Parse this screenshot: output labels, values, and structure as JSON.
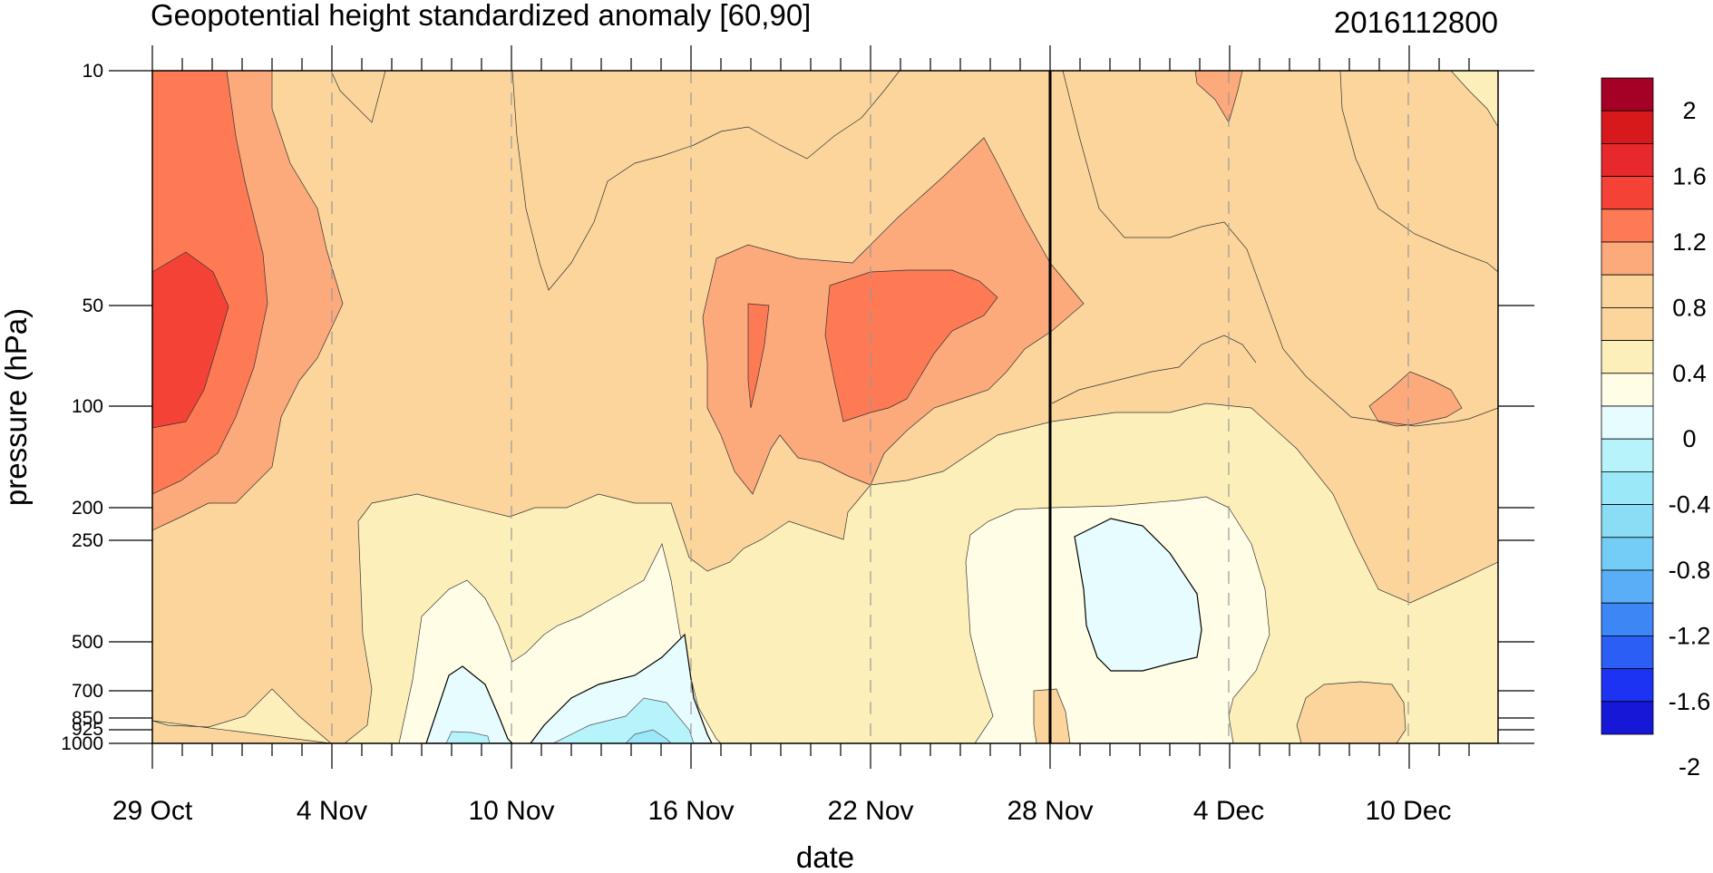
{
  "chart_data": {
    "type": "heatmap",
    "subtype": "filled-contour",
    "title": "Geopotential height standardized anomaly [60,90]",
    "run_label": "2016112800",
    "xlabel": "date",
    "ylabel": "pressure (hPa)",
    "x_ticks": [
      "29 Oct",
      "4 Nov",
      "10 Nov",
      "16 Nov",
      "22 Nov",
      "28 Nov",
      "4 Dec",
      "10 Dec"
    ],
    "x_range": [
      "2016-10-29",
      "2016-12-13"
    ],
    "y_scale": "log",
    "y_ticks": [
      10,
      50,
      100,
      200,
      250,
      500,
      700,
      850,
      925,
      1000
    ],
    "y_tick_labels": [
      "10",
      "50",
      "100",
      "200",
      "250",
      "500",
      "700",
      "850",
      "925",
      "1000"
    ],
    "ylim": [
      1000,
      10
    ],
    "analysis_line_date": "2016-11-28",
    "colorbar": {
      "labels": [
        "2",
        "1.6",
        "1.2",
        "0.8",
        "0.4",
        "0",
        "-0.4",
        "-0.8",
        "-1.2",
        "-1.6",
        "-2"
      ],
      "colors": [
        "#a50026",
        "#d7191c",
        "#e8292b",
        "#f44336",
        "#fd7a55",
        "#fca97b",
        "#fbd59c",
        "#fbd59c",
        "#fdefba",
        "#fffde6",
        "#e6fcfe",
        "#b6f3fb",
        "#9be8f8",
        "#8bdcf5",
        "#74cdf6",
        "#5aaef7",
        "#3d86f6",
        "#2a5ef5",
        "#1c33f4",
        "#1717d8"
      ]
    },
    "regions": [
      {
        "level": 1.2,
        "approx": "29 Oct–1 Nov, 10–200 hPa"
      },
      {
        "level": 1.6,
        "approx": "29 Oct–31 Oct, 40–130 hPa"
      },
      {
        "level": 0.8,
        "approx": "17 Nov–28 Nov, 30–180 hPa"
      },
      {
        "level": 1.2,
        "approx": "19 Nov–26 Nov, 45–110 hPa"
      },
      {
        "level": -0.4,
        "approx": "9 Nov–16 Nov, 700–1000 hPa"
      },
      {
        "level": -0.4,
        "approx": "29 Nov–3 Dec, 250–600 hPa"
      },
      {
        "level": 0.8,
        "approx": "8 Dec–12 Dec, 75–120 hPa"
      }
    ]
  }
}
